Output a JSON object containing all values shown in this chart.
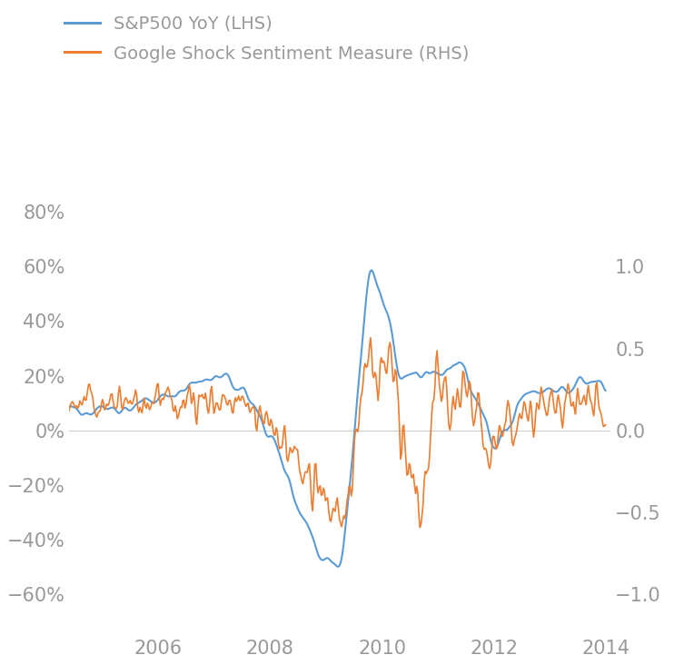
{
  "legend_entries": [
    "S&P500 YoY (LHS)",
    "Google Shock Sentiment Measure (RHS)"
  ],
  "sp500_color": "#5B9BD5",
  "google_color": "#ED7D31",
  "sp500_linewidth": 1.5,
  "google_linewidth": 1.2,
  "lhs_ylim": [
    -0.75,
    1.0
  ],
  "rhs_ylim": [
    -1.25,
    1.667
  ],
  "lhs_yticks": [
    -0.6,
    -0.4,
    -0.2,
    0.0,
    0.2,
    0.4,
    0.6,
    0.8
  ],
  "lhs_yticklabels": [
    "−60%",
    "−40%",
    "−20%",
    "0%",
    "20%",
    "40%",
    "60%",
    "80%"
  ],
  "rhs_yticks": [
    -1.0,
    -0.5,
    0.0,
    0.5,
    1.0
  ],
  "rhs_yticklabels": [
    "−1.0",
    "−0.5",
    "0.0",
    "0.5",
    "1.0"
  ],
  "label_color": "#999999",
  "font_size": 15,
  "legend_font_size": 14,
  "background_color": "#ffffff",
  "grid_color": "#cccccc",
  "seed": 12345
}
